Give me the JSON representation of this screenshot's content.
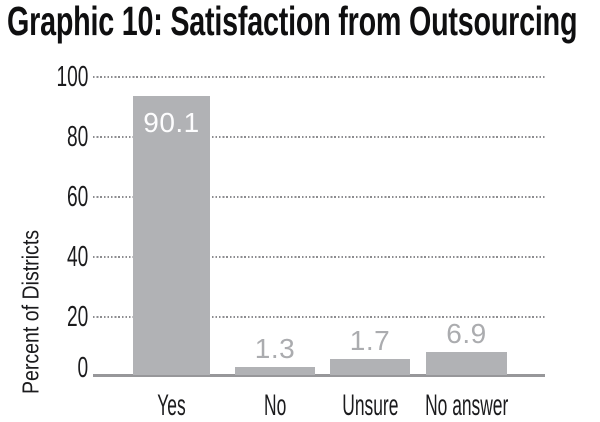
{
  "chart_data": {
    "type": "bar",
    "title": "Graphic 10: Satisfaction from Outsourcing",
    "ylabel": "Percent of Districts",
    "xlabel": "",
    "categories": [
      "Yes",
      "No",
      "Unsure",
      "No answer"
    ],
    "values": [
      90.1,
      1.3,
      1.7,
      6.9
    ],
    "value_labels": [
      "90.1",
      "1.3",
      "1.7",
      "6.9"
    ],
    "yticks": [
      100,
      80,
      60,
      40,
      20,
      0
    ],
    "ylim": [
      0,
      100
    ],
    "grid": "horizontal-dotted",
    "legend": "none",
    "colors": {
      "bar": "#b1b2b5",
      "value_label_inside": "#fdfdfe",
      "value_label_outside": "#abacaf",
      "gridline": "#8d8d90",
      "baseline": "#97979a",
      "text": "#1b1b1d",
      "title": "#0f0f10",
      "background": "#ffffff"
    }
  }
}
